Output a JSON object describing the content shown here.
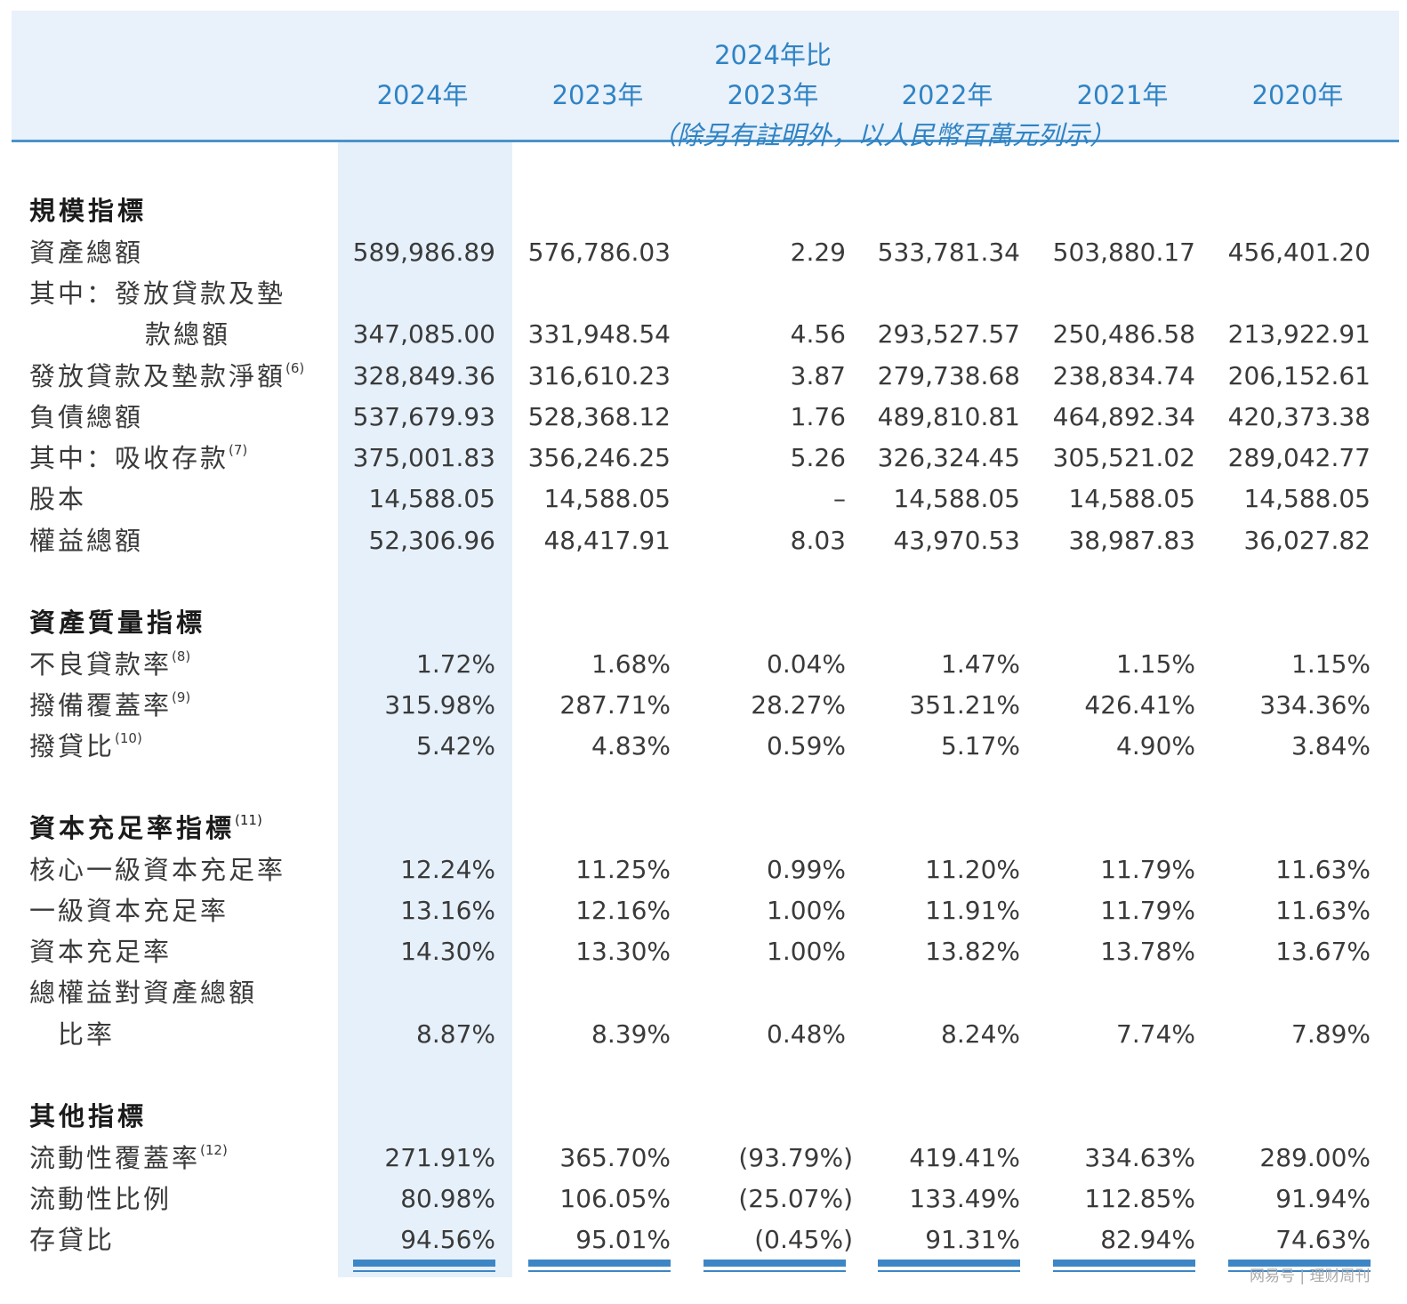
{
  "header": {
    "compare_title": "2024年比",
    "years": [
      "2024年",
      "2023年",
      "2023年",
      "2022年",
      "2021年",
      "2020年"
    ],
    "unit_note": "（除另有註明外，以人民幣百萬元列示）"
  },
  "sections": {
    "scale": {
      "title": "規模指標"
    },
    "quality": {
      "title": "資產質量指標"
    },
    "capital": {
      "title": "資本充足率指標",
      "note": "(11)"
    },
    "other": {
      "title": "其他指標"
    }
  },
  "rows": {
    "total_assets": {
      "label": "資產總額",
      "values": [
        "589,986.89",
        "576,786.03",
        "2.29",
        "533,781.34",
        "503,880.17",
        "456,401.20"
      ]
    },
    "loans_gross": {
      "label_1": "其中：發放貸款及墊",
      "label_2": "款總額",
      "values": [
        "347,085.00",
        "331,948.54",
        "4.56",
        "293,527.57",
        "250,486.58",
        "213,922.91"
      ]
    },
    "loans_net": {
      "label": "發放貸款及墊款淨額",
      "note": "(6)",
      "values": [
        "328,849.36",
        "316,610.23",
        "3.87",
        "279,738.68",
        "238,834.74",
        "206,152.61"
      ]
    },
    "total_liabilities": {
      "label": "負債總額",
      "values": [
        "537,679.93",
        "528,368.12",
        "1.76",
        "489,810.81",
        "464,892.34",
        "420,373.38"
      ]
    },
    "deposits": {
      "label": "其中：吸收存款",
      "note": "(7)",
      "values": [
        "375,001.83",
        "356,246.25",
        "5.26",
        "326,324.45",
        "305,521.02",
        "289,042.77"
      ]
    },
    "share_capital": {
      "label": "股本",
      "values": [
        "14,588.05",
        "14,588.05",
        "–",
        "14,588.05",
        "14,588.05",
        "14,588.05"
      ]
    },
    "total_equity": {
      "label": "權益總額",
      "values": [
        "52,306.96",
        "48,417.91",
        "8.03",
        "43,970.53",
        "38,987.83",
        "36,027.82"
      ]
    },
    "npl_ratio": {
      "label": "不良貸款率",
      "note": "(8)",
      "values": [
        "1.72%",
        "1.68%",
        "0.04%",
        "1.47%",
        "1.15%",
        "1.15%"
      ]
    },
    "provision_coverage": {
      "label": "撥備覆蓋率",
      "note": "(9)",
      "values": [
        "315.98%",
        "287.71%",
        "28.27%",
        "351.21%",
        "426.41%",
        "334.36%"
      ]
    },
    "provision_loan_ratio": {
      "label": "撥貸比",
      "note": "(10)",
      "values": [
        "5.42%",
        "4.83%",
        "0.59%",
        "5.17%",
        "4.90%",
        "3.84%"
      ]
    },
    "cet1": {
      "label": "核心一級資本充足率",
      "values": [
        "12.24%",
        "11.25%",
        "0.99%",
        "11.20%",
        "11.79%",
        "11.63%"
      ]
    },
    "tier1": {
      "label": "一級資本充足率",
      "values": [
        "13.16%",
        "12.16%",
        "1.00%",
        "11.91%",
        "11.79%",
        "11.63%"
      ]
    },
    "car": {
      "label": "資本充足率",
      "values": [
        "14.30%",
        "13.30%",
        "1.00%",
        "13.82%",
        "13.78%",
        "13.67%"
      ]
    },
    "equity_asset": {
      "label_1": "總權益對資產總額",
      "label_2": "比率",
      "values": [
        "8.87%",
        "8.39%",
        "0.48%",
        "8.24%",
        "7.74%",
        "7.89%"
      ]
    },
    "lcr": {
      "label": "流動性覆蓋率",
      "note": "(12)",
      "values": [
        "271.91%",
        "365.70%",
        "(93.79%)",
        "419.41%",
        "334.63%",
        "289.00%"
      ]
    },
    "liquidity_ratio": {
      "label": "流動性比例",
      "values": [
        "80.98%",
        "106.05%",
        "(25.07%)",
        "133.49%",
        "112.85%",
        "91.94%"
      ]
    },
    "ldr": {
      "label": "存貸比",
      "values": [
        "94.56%",
        "95.01%",
        "(0.45%)",
        "91.31%",
        "82.94%",
        "74.63%"
      ]
    }
  },
  "watermark": "网易号 | 理财周刊"
}
